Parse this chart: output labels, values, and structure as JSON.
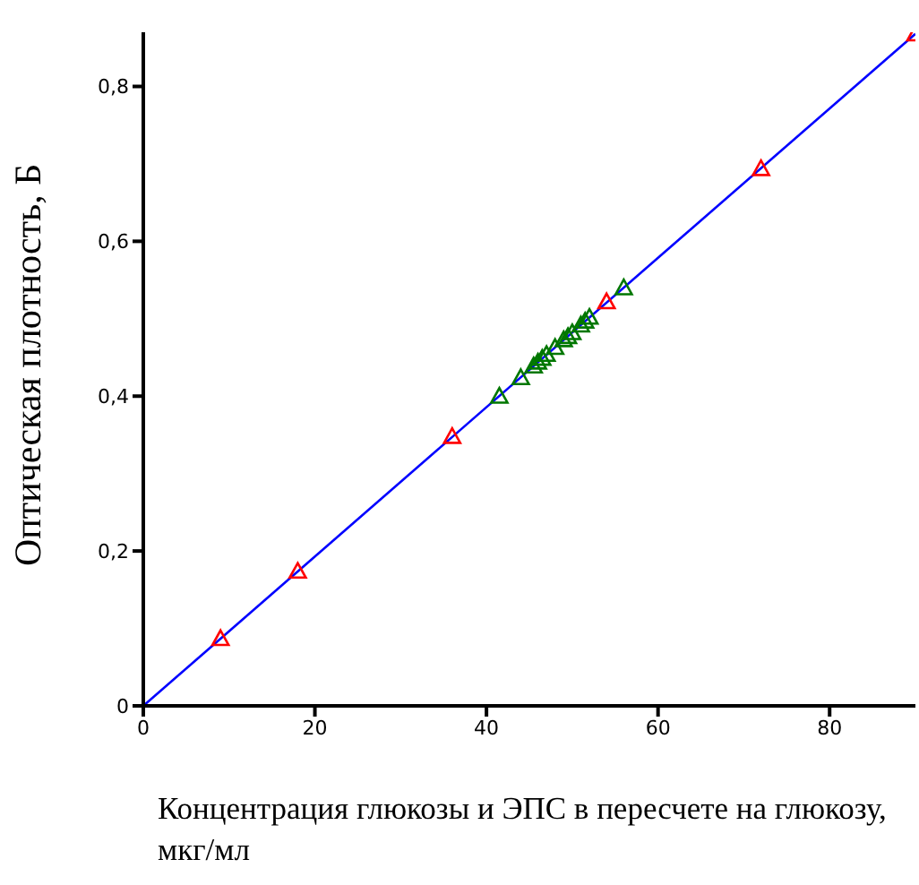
{
  "chart_data": {
    "type": "scatter",
    "xlabel": "Концентрация глюкозы и ЭПС в пересчете на глюкозу, мкг/мл",
    "ylabel": "Оптическая плотность, Б",
    "xlim": [
      0,
      90
    ],
    "ylim": [
      0,
      0.87
    ],
    "xticks": [
      0,
      20,
      40,
      60,
      80
    ],
    "yticks": [
      {
        "value": 0,
        "label": "0"
      },
      {
        "value": 0.2,
        "label": "0,2"
      },
      {
        "value": 0.4,
        "label": "0,4"
      },
      {
        "value": 0.6,
        "label": "0,6"
      },
      {
        "value": 0.8,
        "label": "0,8"
      }
    ],
    "marker": "triangle",
    "grid": false,
    "legend": false,
    "series": [
      {
        "type": "line",
        "marker": "none",
        "color": "#0000ff",
        "x": [
          0,
          90
        ],
        "values": [
          0,
          0.868
        ]
      },
      {
        "color": "#ff0000",
        "x": [
          9,
          18,
          36,
          54,
          72,
          90
        ],
        "values": [
          0.087,
          0.174,
          0.348,
          0.522,
          0.694,
          0.868
        ]
      },
      {
        "color": "#007700",
        "x": [
          41.5,
          44,
          45.5,
          46,
          46.5,
          47,
          48,
          49,
          49.5,
          50,
          51,
          51.5,
          52,
          56
        ],
        "values": [
          0.4,
          0.424,
          0.439,
          0.444,
          0.449,
          0.454,
          0.463,
          0.473,
          0.477,
          0.482,
          0.492,
          0.497,
          0.502,
          0.54
        ]
      }
    ]
  }
}
